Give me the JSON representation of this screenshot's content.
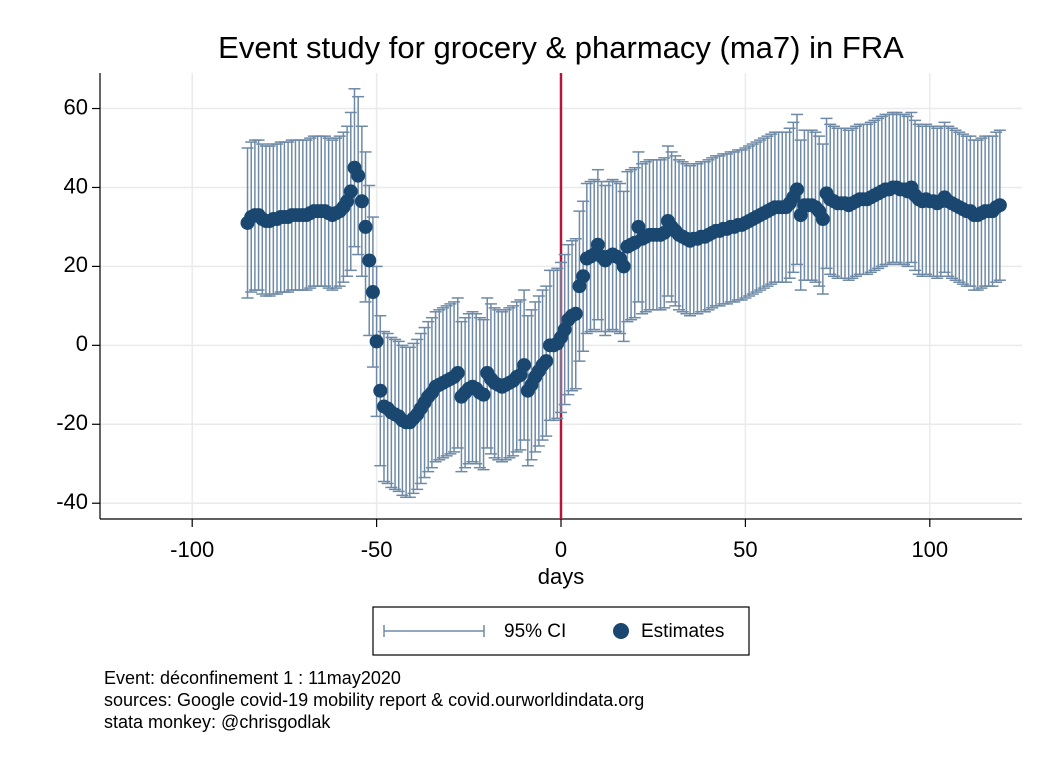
{
  "chart_data": {
    "type": "errorbar-scatter",
    "title": "Event study for grocery & pharmacy (ma7) in FRA",
    "x_label": "days",
    "xlim": [
      -125,
      125
    ],
    "ylim": [
      -44,
      69
    ],
    "xticks": [
      -100,
      -50,
      0,
      50,
      100
    ],
    "yticks": [
      -40,
      -20,
      0,
      20,
      40,
      60
    ],
    "grid": true,
    "event_line": {
      "x": 0,
      "color": "#b2183c"
    },
    "x": [
      -85,
      -84,
      -83,
      -82,
      -81,
      -80,
      -79,
      -78,
      -77,
      -76,
      -75,
      -74,
      -73,
      -72,
      -71,
      -70,
      -69,
      -68,
      -67,
      -66,
      -65,
      -64,
      -63,
      -62,
      -61,
      -60,
      -59,
      -58,
      -57,
      -56,
      -55,
      -54,
      -53,
      -52,
      -51,
      -50,
      -49,
      -48,
      -47,
      -46,
      -45,
      -44,
      -43,
      -42,
      -41,
      -40,
      -39,
      -38,
      -37,
      -36,
      -35,
      -34,
      -33,
      -32,
      -31,
      -30,
      -29,
      -28,
      -27,
      -26,
      -25,
      -24,
      -23,
      -22,
      -21,
      -20,
      -19,
      -18,
      -17,
      -16,
      -15,
      -14,
      -13,
      -12,
      -11,
      -10,
      -9,
      -8,
      -7,
      -6,
      -5,
      -4,
      -3,
      -2,
      -1,
      0,
      1,
      2,
      3,
      4,
      5,
      6,
      7,
      8,
      9,
      10,
      11,
      12,
      13,
      14,
      15,
      16,
      17,
      18,
      19,
      20,
      21,
      22,
      23,
      24,
      25,
      26,
      27,
      28,
      29,
      30,
      31,
      32,
      33,
      34,
      35,
      36,
      37,
      38,
      39,
      40,
      41,
      42,
      43,
      44,
      45,
      46,
      47,
      48,
      49,
      50,
      51,
      52,
      53,
      54,
      55,
      56,
      57,
      58,
      59,
      60,
      61,
      62,
      63,
      64,
      65,
      66,
      67,
      68,
      69,
      70,
      71,
      72,
      73,
      74,
      75,
      76,
      77,
      78,
      79,
      80,
      81,
      82,
      83,
      84,
      85,
      86,
      87,
      88,
      89,
      90,
      91,
      92,
      93,
      94,
      95,
      96,
      97,
      98,
      99,
      100,
      101,
      102,
      103,
      104,
      105,
      106,
      107,
      108,
      109,
      110,
      111,
      112,
      113,
      114,
      115,
      116,
      117,
      118,
      119
    ],
    "series": [
      {
        "name": "95% CI",
        "color": "#6e8aa6",
        "lower": [
          12,
          13.5,
          14,
          14,
          13,
          12.5,
          12.5,
          13,
          13,
          13.5,
          13.5,
          13.5,
          14,
          14,
          14,
          14,
          14,
          14.5,
          15,
          15,
          15,
          15,
          14.5,
          14,
          14.5,
          15,
          16,
          17.5,
          19,
          25,
          23,
          17.5,
          11,
          2.5,
          -5.5,
          -18,
          -30.5,
          -34.5,
          -35,
          -36,
          -36.5,
          -37,
          -38,
          -38.5,
          -38.5,
          -37.5,
          -36.5,
          -35,
          -33.5,
          -32,
          -31,
          -29.5,
          -29,
          -28.5,
          -28,
          -27.5,
          -27,
          -26,
          -32,
          -31,
          -30,
          -29.5,
          -30,
          -31,
          -31.5,
          -26,
          -27.5,
          -28.5,
          -29,
          -29.5,
          -29,
          -28.5,
          -28,
          -27,
          -26.5,
          -24,
          -30.5,
          -29,
          -27,
          -25.5,
          -24,
          -23,
          -19,
          -19,
          -18.5,
          -17,
          -15,
          -12.5,
          -11.5,
          -11,
          -4,
          -1.5,
          3,
          3.5,
          4,
          6.5,
          3.5,
          2.5,
          3.5,
          4,
          3.5,
          3,
          1,
          6,
          6.5,
          7,
          11,
          8,
          8.5,
          9,
          9,
          9,
          9,
          9.5,
          12.5,
          11,
          10,
          9,
          8.5,
          8,
          7.5,
          8,
          8,
          8.5,
          8.5,
          9,
          9.5,
          10,
          10,
          10.5,
          10.5,
          11,
          11,
          11.5,
          11.5,
          12,
          12.5,
          13,
          13.5,
          14,
          14.5,
          15,
          15.5,
          16,
          16,
          16,
          16,
          17,
          18.5,
          20.5,
          14,
          16.5,
          16.5,
          16.5,
          16,
          15,
          13,
          19.5,
          18,
          17.5,
          17,
          17,
          17,
          16.5,
          17,
          17.5,
          18,
          18,
          18,
          18.5,
          19,
          19.5,
          20,
          20.5,
          20.5,
          21,
          21,
          20.5,
          20.5,
          20,
          21,
          19,
          18,
          17.5,
          18,
          17.5,
          17.5,
          17,
          17.5,
          18.5,
          17.5,
          17,
          16.5,
          16,
          15.5,
          15,
          15,
          14,
          14,
          14.5,
          15,
          15,
          15,
          16,
          16.5
        ],
        "upper": [
          50,
          51.5,
          52,
          52,
          51,
          50.5,
          50.5,
          51,
          51,
          51.5,
          51.5,
          51.5,
          52,
          52,
          52,
          52,
          52,
          52.5,
          53,
          53,
          53,
          53,
          52.5,
          52,
          52.5,
          53,
          54,
          55.5,
          59,
          65,
          63,
          55.5,
          49,
          40.5,
          32.5,
          20,
          7.5,
          3.5,
          3,
          2,
          1.5,
          1,
          0,
          -0.5,
          -0.5,
          0.5,
          1.5,
          3,
          4.5,
          6,
          7,
          8.5,
          9,
          9.5,
          10,
          10.5,
          11,
          12,
          6,
          7,
          8,
          8.5,
          8,
          7,
          6.5,
          12,
          10.5,
          9.5,
          9,
          8.5,
          9,
          9.5,
          10,
          11,
          11.5,
          14,
          7.5,
          9,
          11,
          12.5,
          14,
          15,
          19,
          19,
          19.5,
          21,
          23,
          25.5,
          26.5,
          27,
          34,
          36.5,
          41,
          41.5,
          42,
          44.5,
          41.5,
          40.5,
          41.5,
          42,
          41.5,
          41,
          39,
          44,
          44.5,
          45,
          49,
          46,
          46.5,
          47,
          47,
          47,
          47,
          47.5,
          50.5,
          49,
          48,
          47,
          46.5,
          46,
          45.5,
          46,
          46,
          46.5,
          46.5,
          47,
          47.5,
          48,
          48,
          48.5,
          48.5,
          49,
          49,
          49.5,
          49.5,
          50,
          50.5,
          51,
          51.5,
          52,
          52.5,
          53,
          53.5,
          54,
          54,
          54,
          54,
          55,
          56.5,
          58.5,
          52,
          54.5,
          54.5,
          54.5,
          54,
          53,
          51,
          57.5,
          56,
          55.5,
          55,
          55,
          55,
          54.5,
          55,
          55.5,
          56,
          56,
          56,
          56.5,
          57,
          57.5,
          58,
          58.5,
          58.5,
          59,
          59,
          58.5,
          58.5,
          58,
          59,
          57,
          56,
          55.5,
          56,
          55.5,
          55.5,
          55,
          55.5,
          56.5,
          55.5,
          55,
          54.5,
          54,
          53.5,
          53,
          53,
          52,
          52,
          52.5,
          53,
          53,
          53,
          54,
          54.5
        ]
      },
      {
        "name": "Estimates",
        "color": "#1a476f",
        "values": [
          31,
          32.5,
          33,
          33,
          32,
          31.5,
          31.5,
          32,
          32,
          32.5,
          32.5,
          32.5,
          33,
          33,
          33,
          33,
          33,
          33.5,
          34,
          34,
          34,
          34,
          33.5,
          33,
          33.5,
          34,
          35,
          36.5,
          39,
          45,
          43,
          36.5,
          30,
          21.5,
          13.5,
          1,
          -11.5,
          -15.5,
          -16,
          -17,
          -17.5,
          -18,
          -19,
          -19.5,
          -19.5,
          -18.5,
          -17.5,
          -16,
          -14.5,
          -13,
          -12,
          -10.5,
          -10,
          -9.5,
          -9,
          -8.5,
          -8,
          -7,
          -13,
          -12,
          -11,
          -10.5,
          -11,
          -12,
          -12.5,
          -7,
          -8.5,
          -9.5,
          -10,
          -10.5,
          -10,
          -9.5,
          -9,
          -8,
          -7.5,
          -5,
          -11.5,
          -10,
          -8,
          -6.5,
          -5,
          -4,
          0,
          0,
          0.5,
          2,
          4,
          6.5,
          7.5,
          8,
          15,
          17.5,
          22,
          22.5,
          23,
          25.5,
          22.5,
          21.5,
          22.5,
          23,
          22.5,
          22,
          20,
          25,
          25.5,
          26,
          30,
          27,
          27.5,
          28,
          28,
          28,
          28,
          28.5,
          31.5,
          30,
          29,
          28,
          27.5,
          27,
          26.5,
          27,
          27,
          27.5,
          27.5,
          28,
          28.5,
          29,
          29,
          29.5,
          29.5,
          30,
          30,
          30.5,
          30.5,
          31,
          31.5,
          32,
          32.5,
          33,
          33.5,
          34,
          34.5,
          35,
          35,
          35,
          35,
          36,
          37.5,
          39.5,
          33,
          35.5,
          35.5,
          35.5,
          35,
          34,
          32,
          38.5,
          37,
          36.5,
          36,
          36,
          36,
          35.5,
          36,
          36.5,
          37,
          37,
          37,
          37.5,
          38,
          38.5,
          39,
          39.5,
          39.5,
          40,
          40,
          39.5,
          39.5,
          39,
          40,
          38,
          37,
          36.5,
          37,
          36.5,
          36.5,
          36,
          36.5,
          37.5,
          36.5,
          36,
          35.5,
          35,
          34.5,
          34,
          34,
          33,
          33,
          33.5,
          34,
          34,
          34,
          35,
          35.5
        ]
      }
    ],
    "notes": [
      "Event: déconfinement 1 : 11may2020",
      "sources: Google covid-19 mobility report & covid.ourworldindata.org",
      "stata monkey: @chrisgodlak"
    ]
  }
}
